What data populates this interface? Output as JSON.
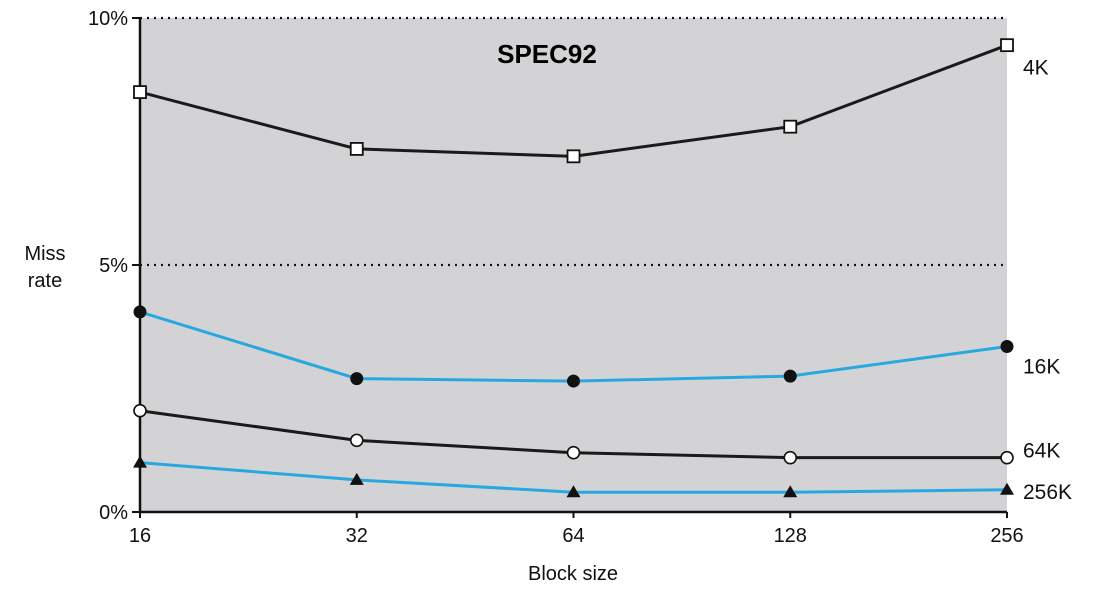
{
  "chart_data": {
    "type": "line",
    "title": "SPEC92",
    "xlabel": "Block size",
    "ylabel": [
      "Miss",
      "rate"
    ],
    "categories": [
      "16",
      "32",
      "64",
      "128",
      "256"
    ],
    "ylim": [
      0,
      10
    ],
    "yticks": [
      {
        "value": 0,
        "label": "0%"
      },
      {
        "value": 5,
        "label": "5%"
      },
      {
        "value": 10,
        "label": "10%"
      }
    ],
    "dotted_gridlines_at": [
      5,
      10
    ],
    "plot_background": "#d3d3d5",
    "series": [
      {
        "name": "4K",
        "values": [
          8.5,
          7.35,
          7.2,
          7.8,
          9.45
        ],
        "color": "#1a1a1a",
        "marker": "open-square"
      },
      {
        "name": "16K",
        "values": [
          4.05,
          2.7,
          2.65,
          2.75,
          3.35
        ],
        "color": "#29a8e0",
        "marker": "filled-circle"
      },
      {
        "name": "64K",
        "values": [
          2.05,
          1.45,
          1.2,
          1.1,
          1.1
        ],
        "color": "#1a1a1a",
        "marker": "open-circle"
      },
      {
        "name": "256K",
        "values": [
          1.0,
          0.65,
          0.4,
          0.4,
          0.45
        ],
        "color": "#29a8e0",
        "marker": "filled-triangle"
      }
    ]
  }
}
